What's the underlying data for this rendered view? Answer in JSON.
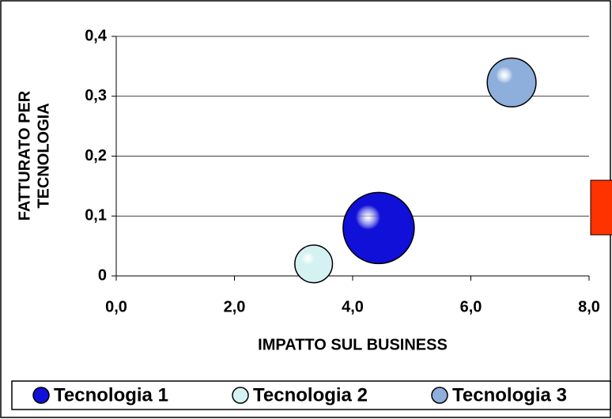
{
  "chart_data": {
    "type": "bubble",
    "x_label": "IMPATTO SUL BUSINESS",
    "y_label": [
      "FATTURATO PER",
      "TECNOLOGIA"
    ],
    "series": [
      {
        "name": "Tecnologia 1",
        "color": "#1010d8",
        "x": [
          4.44
        ],
        "values": [
          0.08
        ],
        "sizes": [
          100
        ]
      },
      {
        "name": "Tecnologia 2",
        "color": "#d4f2f2",
        "x": [
          3.34
        ],
        "values": [
          0.02
        ],
        "sizes": [
          28
        ]
      },
      {
        "name": "Tecnologia 3",
        "color": "#8eaedb",
        "x": [
          6.69
        ],
        "values": [
          0.323
        ],
        "sizes": [
          47
        ]
      }
    ],
    "xlim": [
      0,
      8
    ],
    "xticks": [
      {
        "value": 0,
        "label": "0,0"
      },
      {
        "value": 2,
        "label": "2,0"
      },
      {
        "value": 4,
        "label": "4,0"
      },
      {
        "value": 6,
        "label": "6,0"
      },
      {
        "value": 8,
        "label": "8,0"
      }
    ],
    "ylim": [
      0,
      0.4
    ],
    "yticks": [
      0,
      {
        "value": 0.1,
        "label": "0,1"
      },
      {
        "value": 0.2,
        "label": "0,2"
      },
      {
        "value": 0.3,
        "label": "0,3"
      },
      {
        "value": 0.4,
        "label": "0,4"
      }
    ],
    "grid": true,
    "legend": "bottom"
  }
}
